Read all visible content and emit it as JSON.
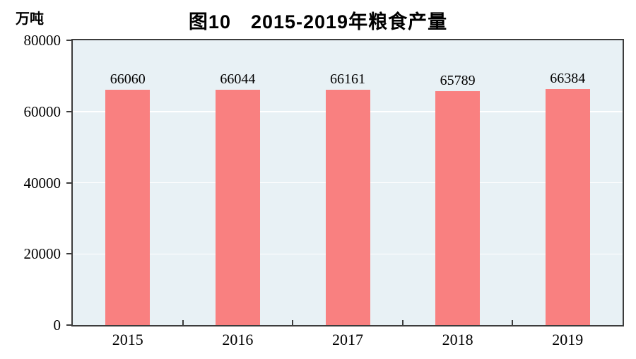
{
  "chart_data": {
    "type": "bar",
    "title": "图10　2015-2019年粮食产量",
    "unit_label": "万吨",
    "categories": [
      "2015",
      "2016",
      "2017",
      "2018",
      "2019"
    ],
    "values": [
      66060,
      66044,
      66161,
      65789,
      66384
    ],
    "data_labels": [
      "66060",
      "66044",
      "66161",
      "65789",
      "66384"
    ],
    "series_name": "粮食产量",
    "xlabel": "",
    "ylabel": "万吨",
    "ylim": [
      0,
      80000
    ],
    "yticks": [
      0,
      20000,
      40000,
      60000,
      80000
    ],
    "ytick_labels": [
      "0",
      "20000",
      "40000",
      "60000",
      "80000"
    ],
    "grid": "horizontal",
    "legend": "none",
    "colors": {
      "bar": "#f98080",
      "plot_background": "#e8f1f5",
      "gridline": "#ffffff",
      "axis_border": "#3c3c3c",
      "text": "#000000",
      "page_background": "#ffffff"
    }
  }
}
